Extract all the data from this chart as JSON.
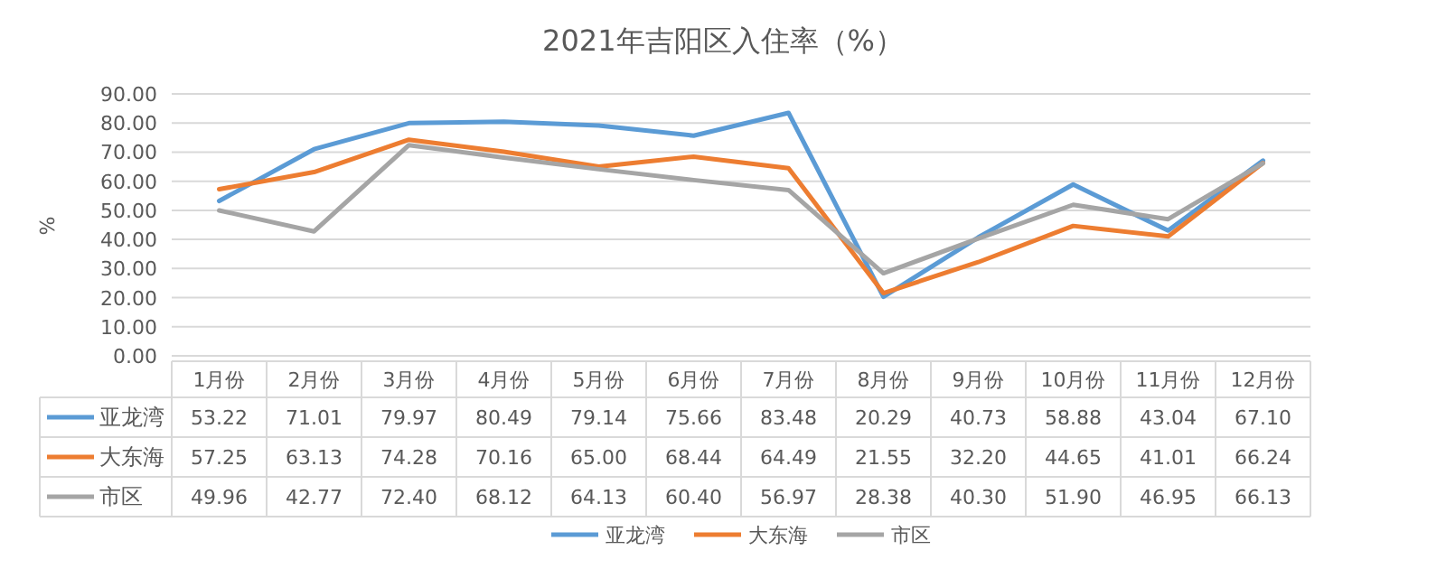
{
  "chart_data": {
    "type": "line",
    "title": "2021年吉阳区入住率（%）",
    "ylabel": "%",
    "categories": [
      "1月份",
      "2月份",
      "3月份",
      "4月份",
      "5月份",
      "6月份",
      "7月份",
      "8月份",
      "9月份",
      "10月份",
      "11月份",
      "12月份"
    ],
    "series": [
      {
        "name": "亚龙湾",
        "color": "#5b9bd5",
        "values": [
          53.22,
          71.01,
          79.97,
          80.49,
          79.14,
          75.66,
          83.48,
          20.29,
          40.73,
          58.88,
          43.04,
          67.1
        ],
        "value_labels": [
          "53.22",
          "71.01",
          "79.97",
          "80.49",
          "79.14",
          "75.66",
          "83.48",
          "20.29",
          "40.73",
          "58.88",
          "43.04",
          "67.10"
        ]
      },
      {
        "name": "大东海",
        "color": "#ed7d31",
        "values": [
          57.25,
          63.13,
          74.28,
          70.16,
          65.0,
          68.44,
          64.49,
          21.55,
          32.2,
          44.65,
          41.01,
          66.24
        ],
        "value_labels": [
          "57.25",
          "63.13",
          "74.28",
          "70.16",
          "65.00",
          "68.44",
          "64.49",
          "21.55",
          "32.20",
          "44.65",
          "41.01",
          "66.24"
        ]
      },
      {
        "name": "市区",
        "color": "#a5a5a5",
        "values": [
          49.96,
          42.77,
          72.4,
          68.12,
          64.13,
          60.4,
          56.97,
          28.38,
          40.3,
          51.9,
          46.95,
          66.13
        ],
        "value_labels": [
          "49.96",
          "42.77",
          "72.40",
          "68.12",
          "64.13",
          "60.40",
          "56.97",
          "28.38",
          "40.30",
          "51.90",
          "46.95",
          "66.13"
        ]
      }
    ],
    "ylim": [
      0,
      90
    ],
    "yticks": [
      {
        "value": 0,
        "label": "0.00"
      },
      {
        "value": 10,
        "label": "10.00"
      },
      {
        "value": 20,
        "label": "20.00"
      },
      {
        "value": 30,
        "label": "30.00"
      },
      {
        "value": 40,
        "label": "40.00"
      },
      {
        "value": 50,
        "label": "50.00"
      },
      {
        "value": 60,
        "label": "60.00"
      },
      {
        "value": 70,
        "label": "70.00"
      },
      {
        "value": 80,
        "label": "80.00"
      },
      {
        "value": 90,
        "label": "90.00"
      }
    ],
    "grid": "y",
    "legend": "bottom",
    "marker": "none",
    "line_style": "solid"
  }
}
